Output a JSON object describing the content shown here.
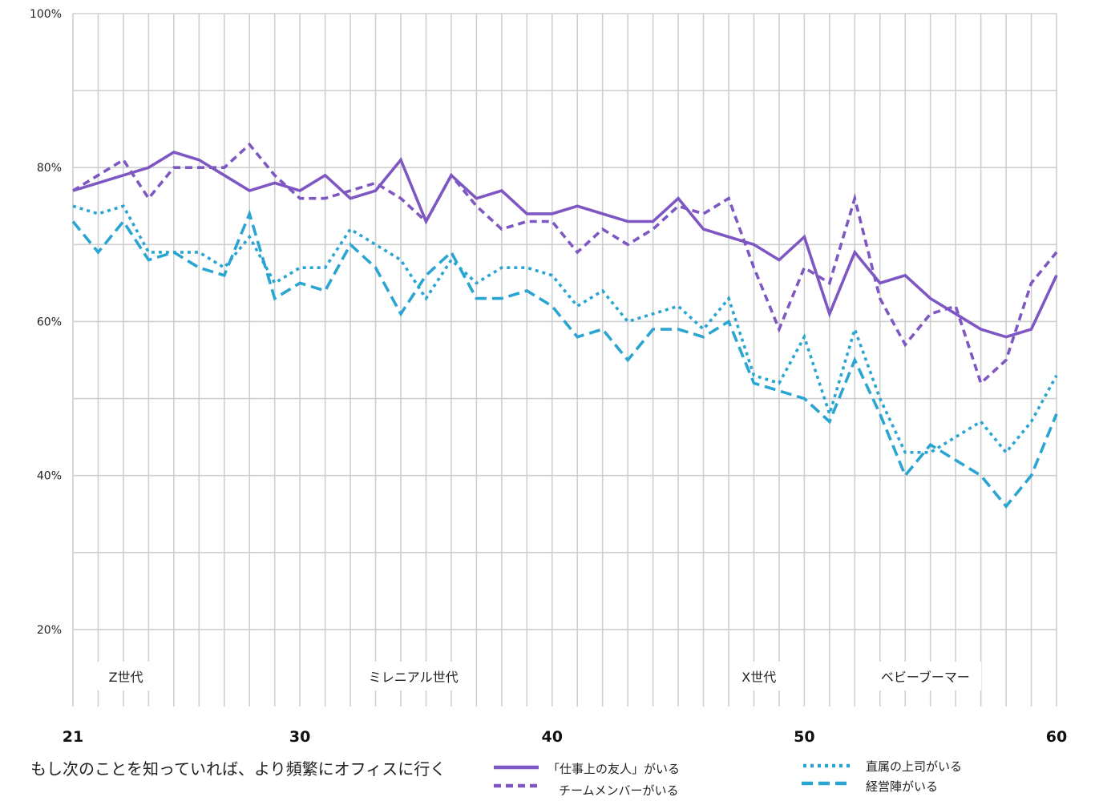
{
  "caption": "もし次のことを知っていれば、より頻繁にオフィスに行く",
  "chart_data": {
    "type": "line",
    "xlim": [
      21,
      60
    ],
    "ylim": [
      10,
      100
    ],
    "x_ticks": [
      21,
      30,
      40,
      50,
      60
    ],
    "y_ticks": [
      20,
      40,
      60,
      80,
      100
    ],
    "y_tick_labels": [
      "20%",
      "40%",
      "60%",
      "80%",
      "100%"
    ],
    "grid": true,
    "legend_position": "bottom",
    "generations": [
      {
        "label": "Z世代",
        "x_center": 23.1
      },
      {
        "label": "ミレニアル世代",
        "x_center": 34.5
      },
      {
        "label": "X世代",
        "x_center": 48.2
      },
      {
        "label": "ベビーブーマー",
        "x_center": 54.8
      }
    ],
    "x": [
      21,
      22,
      23,
      24,
      25,
      26,
      27,
      28,
      29,
      30,
      31,
      32,
      33,
      34,
      35,
      36,
      37,
      38,
      39,
      40,
      41,
      42,
      43,
      44,
      45,
      46,
      47,
      48,
      49,
      50,
      51,
      52,
      53,
      54,
      55,
      56,
      57,
      58,
      59,
      60
    ],
    "series": [
      {
        "name": "「仕事上の友人」がいる",
        "color": "#7e57c2",
        "dash": "solid",
        "values": [
          77,
          78,
          79,
          80,
          82,
          81,
          79,
          77,
          78,
          77,
          79,
          76,
          77,
          81,
          73,
          79,
          76,
          77,
          74,
          74,
          75,
          74,
          73,
          73,
          76,
          72,
          71,
          70,
          68,
          71,
          61,
          69,
          65,
          66,
          63,
          61,
          59,
          58,
          59,
          66
        ]
      },
      {
        "name": "チームメンバーがいる",
        "color": "#7e57c2",
        "dash": "dash-purple",
        "values": [
          77,
          79,
          81,
          76,
          80,
          80,
          80,
          83,
          79,
          76,
          76,
          77,
          78,
          76,
          73,
          79,
          75,
          72,
          73,
          73,
          69,
          72,
          70,
          72,
          75,
          74,
          76,
          67,
          59,
          67,
          65,
          76,
          63,
          57,
          61,
          62,
          52,
          55,
          65,
          69
        ]
      },
      {
        "name": "直属の上司がいる",
        "color": "#2aa5d2",
        "dash": "dotted",
        "values": [
          75,
          74,
          75,
          69,
          69,
          69,
          67,
          71,
          65,
          67,
          67,
          72,
          70,
          68,
          63,
          68,
          65,
          67,
          67,
          66,
          62,
          64,
          60,
          61,
          62,
          59,
          63,
          53,
          52,
          58,
          48,
          59,
          50,
          43,
          43,
          45,
          47,
          43,
          47,
          53
        ]
      },
      {
        "name": "経営陣がいる",
        "color": "#2aa5d2",
        "dash": "dash-blue",
        "values": [
          73,
          69,
          73,
          68,
          69,
          67,
          66,
          74,
          63,
          65,
          64,
          70,
          67,
          61,
          66,
          69,
          63,
          63,
          64,
          62,
          58,
          59,
          55,
          59,
          59,
          58,
          60,
          52,
          51,
          50,
          47,
          55,
          48,
          40,
          44,
          42,
          40,
          36,
          40,
          48
        ]
      }
    ]
  }
}
